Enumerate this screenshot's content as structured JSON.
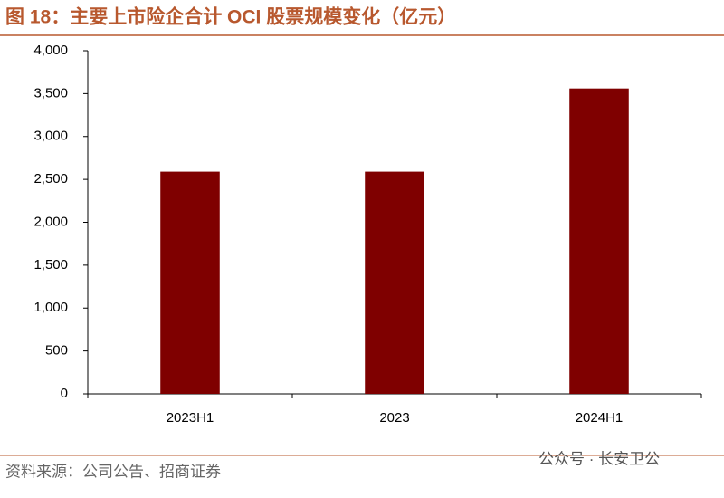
{
  "chart_data": {
    "type": "bar",
    "title": "图 18：主要上市险企合计 OCI 股票规模变化（亿元）",
    "categories": [
      "2023H1",
      "2023",
      "2024H1"
    ],
    "values": [
      2590,
      2590,
      3560
    ],
    "color": "#7f0000",
    "ylim": [
      0,
      4000
    ],
    "yticks": [
      0,
      500,
      {
        "value": 1000,
        "label": "1,000"
      },
      {
        "value": 1500,
        "label": "1,500"
      },
      {
        "value": 2000,
        "label": "2,000"
      },
      {
        "value": 2500,
        "label": "2,500"
      },
      {
        "value": 3000,
        "label": "3,000"
      },
      {
        "value": 3500,
        "label": "3,500"
      },
      {
        "value": 4000,
        "label": "4,000"
      }
    ],
    "grid": false,
    "source": "资料来源：公司公告、招商证券",
    "watermark": "公众号 · 长安卫公"
  }
}
